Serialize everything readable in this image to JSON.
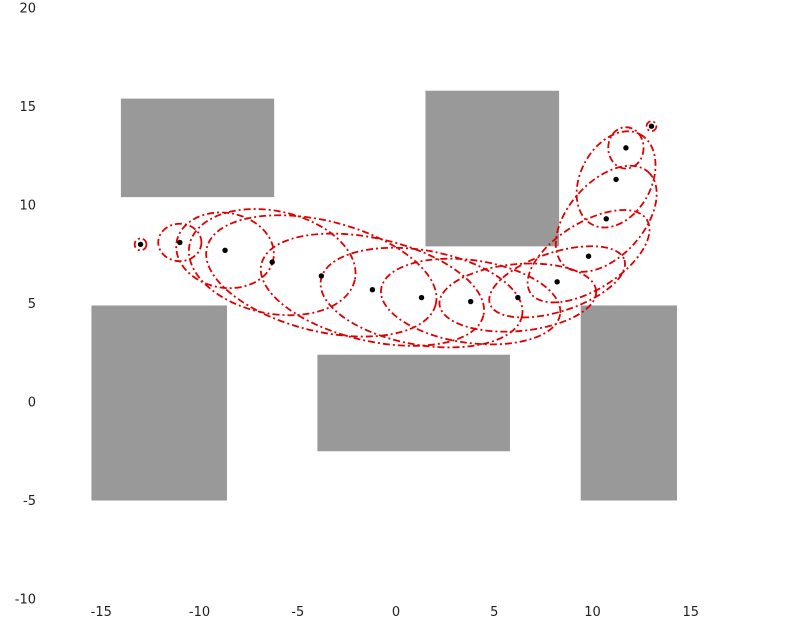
{
  "chart_data": {
    "type": "scatter",
    "title": "",
    "xlabel": "",
    "ylabel": "",
    "xlim": [
      -17.5,
      20
    ],
    "ylim": [
      -10,
      20
    ],
    "grid": false,
    "x_ticks": [
      -15,
      -10,
      -5,
      0,
      5,
      10,
      15
    ],
    "y_ticks": [
      20,
      15,
      10,
      5,
      0,
      -5,
      -10
    ],
    "obstacles": [
      {
        "x0": -14,
        "x1": -6.2,
        "y0": 10.4,
        "y1": 15.4
      },
      {
        "x0": 1.5,
        "x1": 8.3,
        "y0": 7.9,
        "y1": 15.8
      },
      {
        "x0": -15.5,
        "x1": -8.6,
        "y0": -5,
        "y1": 4.9
      },
      {
        "x0": -4,
        "x1": 5.8,
        "y0": -2.5,
        "y1": 2.4
      },
      {
        "x0": 9.4,
        "x1": 14.3,
        "y0": -5,
        "y1": 4.9
      }
    ],
    "series": [
      {
        "x": [
          -13,
          -11,
          -8.7,
          -6.3,
          -3.8,
          -1.2,
          1.3,
          3.8,
          6.2,
          8.2,
          9.8,
          10.7,
          11.2,
          11.7,
          13
        ],
        "y": [
          8,
          8.1,
          7.7,
          7.1,
          6.4,
          5.7,
          5.3,
          5.1,
          5.3,
          6.1,
          7.4,
          9.3,
          11.3,
          12.9,
          14
        ]
      }
    ],
    "uncertainty_ellipses": [
      {
        "cx": -13,
        "cy": 8,
        "rx": 0.3,
        "ry": 0.3,
        "angle": 0
      },
      {
        "cx": -11,
        "cy": 8.1,
        "rx": 1.1,
        "ry": 0.95,
        "angle": 0
      },
      {
        "cx": -8.7,
        "cy": 7.7,
        "rx": 2.5,
        "ry": 1.9,
        "angle": -10
      },
      {
        "cx": -6.3,
        "cy": 7.1,
        "rx": 4.3,
        "ry": 2.6,
        "angle": -12
      },
      {
        "cx": -3.8,
        "cy": 6.4,
        "rx": 6,
        "ry": 2.8,
        "angle": -14
      },
      {
        "cx": -1.2,
        "cy": 5.7,
        "rx": 5.8,
        "ry": 2.6,
        "angle": -13
      },
      {
        "cx": 1.3,
        "cy": 5.3,
        "rx": 5.2,
        "ry": 2.4,
        "angle": -10
      },
      {
        "cx": 3.8,
        "cy": 5.1,
        "rx": 4.6,
        "ry": 2.1,
        "angle": -8
      },
      {
        "cx": 6.2,
        "cy": 5.3,
        "rx": 4,
        "ry": 1.7,
        "angle": 5
      },
      {
        "cx": 8.2,
        "cy": 6.1,
        "rx": 3.6,
        "ry": 1.5,
        "angle": 18
      },
      {
        "cx": 9.8,
        "cy": 7.4,
        "rx": 3.5,
        "ry": 1.7,
        "angle": 32
      },
      {
        "cx": 10.7,
        "cy": 9.3,
        "rx": 3.2,
        "ry": 1.9,
        "angle": 48
      },
      {
        "cx": 11.2,
        "cy": 11.3,
        "rx": 2.6,
        "ry": 1.8,
        "angle": 62
      },
      {
        "cx": 11.7,
        "cy": 12.9,
        "rx": 0.9,
        "ry": 1.05,
        "angle": 0
      },
      {
        "cx": 13,
        "cy": 14,
        "rx": 0.25,
        "ry": 0.25,
        "angle": 0
      }
    ],
    "colors": {
      "obstacle": "#999999",
      "ellipse": "#dd0000",
      "point": "#000000"
    }
  }
}
